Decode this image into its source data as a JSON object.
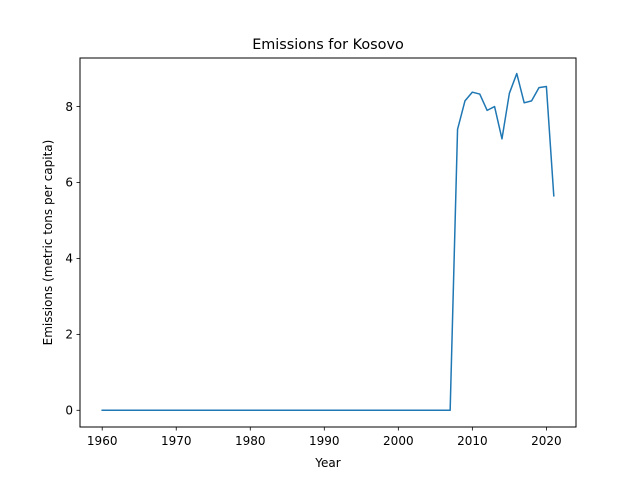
{
  "chart_data": {
    "type": "line",
    "title": "Emissions for Kosovo",
    "xlabel": "Year",
    "ylabel": "Emissions (metric tons per capita)",
    "xlim": [
      1957,
      2024
    ],
    "ylim": [
      -0.44,
      9.28
    ],
    "x_ticks": [
      1960,
      1970,
      1980,
      1990,
      2000,
      2010,
      2020
    ],
    "y_ticks": [
      0,
      2,
      4,
      6,
      8
    ],
    "grid": false,
    "legend": "none",
    "color": "#1f77b4",
    "series": [
      {
        "x": [
          1960,
          1961,
          1962,
          1963,
          1964,
          1965,
          1966,
          1967,
          1968,
          1969,
          1970,
          1971,
          1972,
          1973,
          1974,
          1975,
          1976,
          1977,
          1978,
          1979,
          1980,
          1981,
          1982,
          1983,
          1984,
          1985,
          1986,
          1987,
          1988,
          1989,
          1990,
          1991,
          1992,
          1993,
          1994,
          1995,
          1996,
          1997,
          1998,
          1999,
          2000,
          2001,
          2002,
          2003,
          2004,
          2005,
          2006,
          2007,
          2008,
          2009,
          2010,
          2011,
          2012,
          2013,
          2014,
          2015,
          2016,
          2017,
          2018,
          2019,
          2020,
          2021
        ],
        "values": [
          0,
          0,
          0,
          0,
          0,
          0,
          0,
          0,
          0,
          0,
          0,
          0,
          0,
          0,
          0,
          0,
          0,
          0,
          0,
          0,
          0,
          0,
          0,
          0,
          0,
          0,
          0,
          0,
          0,
          0,
          0,
          0,
          0,
          0,
          0,
          0,
          0,
          0,
          0,
          0,
          0,
          0,
          0,
          0,
          0,
          0,
          0,
          0,
          7.4,
          8.15,
          8.38,
          8.33,
          7.9,
          8.0,
          7.15,
          8.35,
          8.87,
          8.1,
          8.15,
          8.5,
          8.53,
          5.65
        ]
      }
    ]
  }
}
